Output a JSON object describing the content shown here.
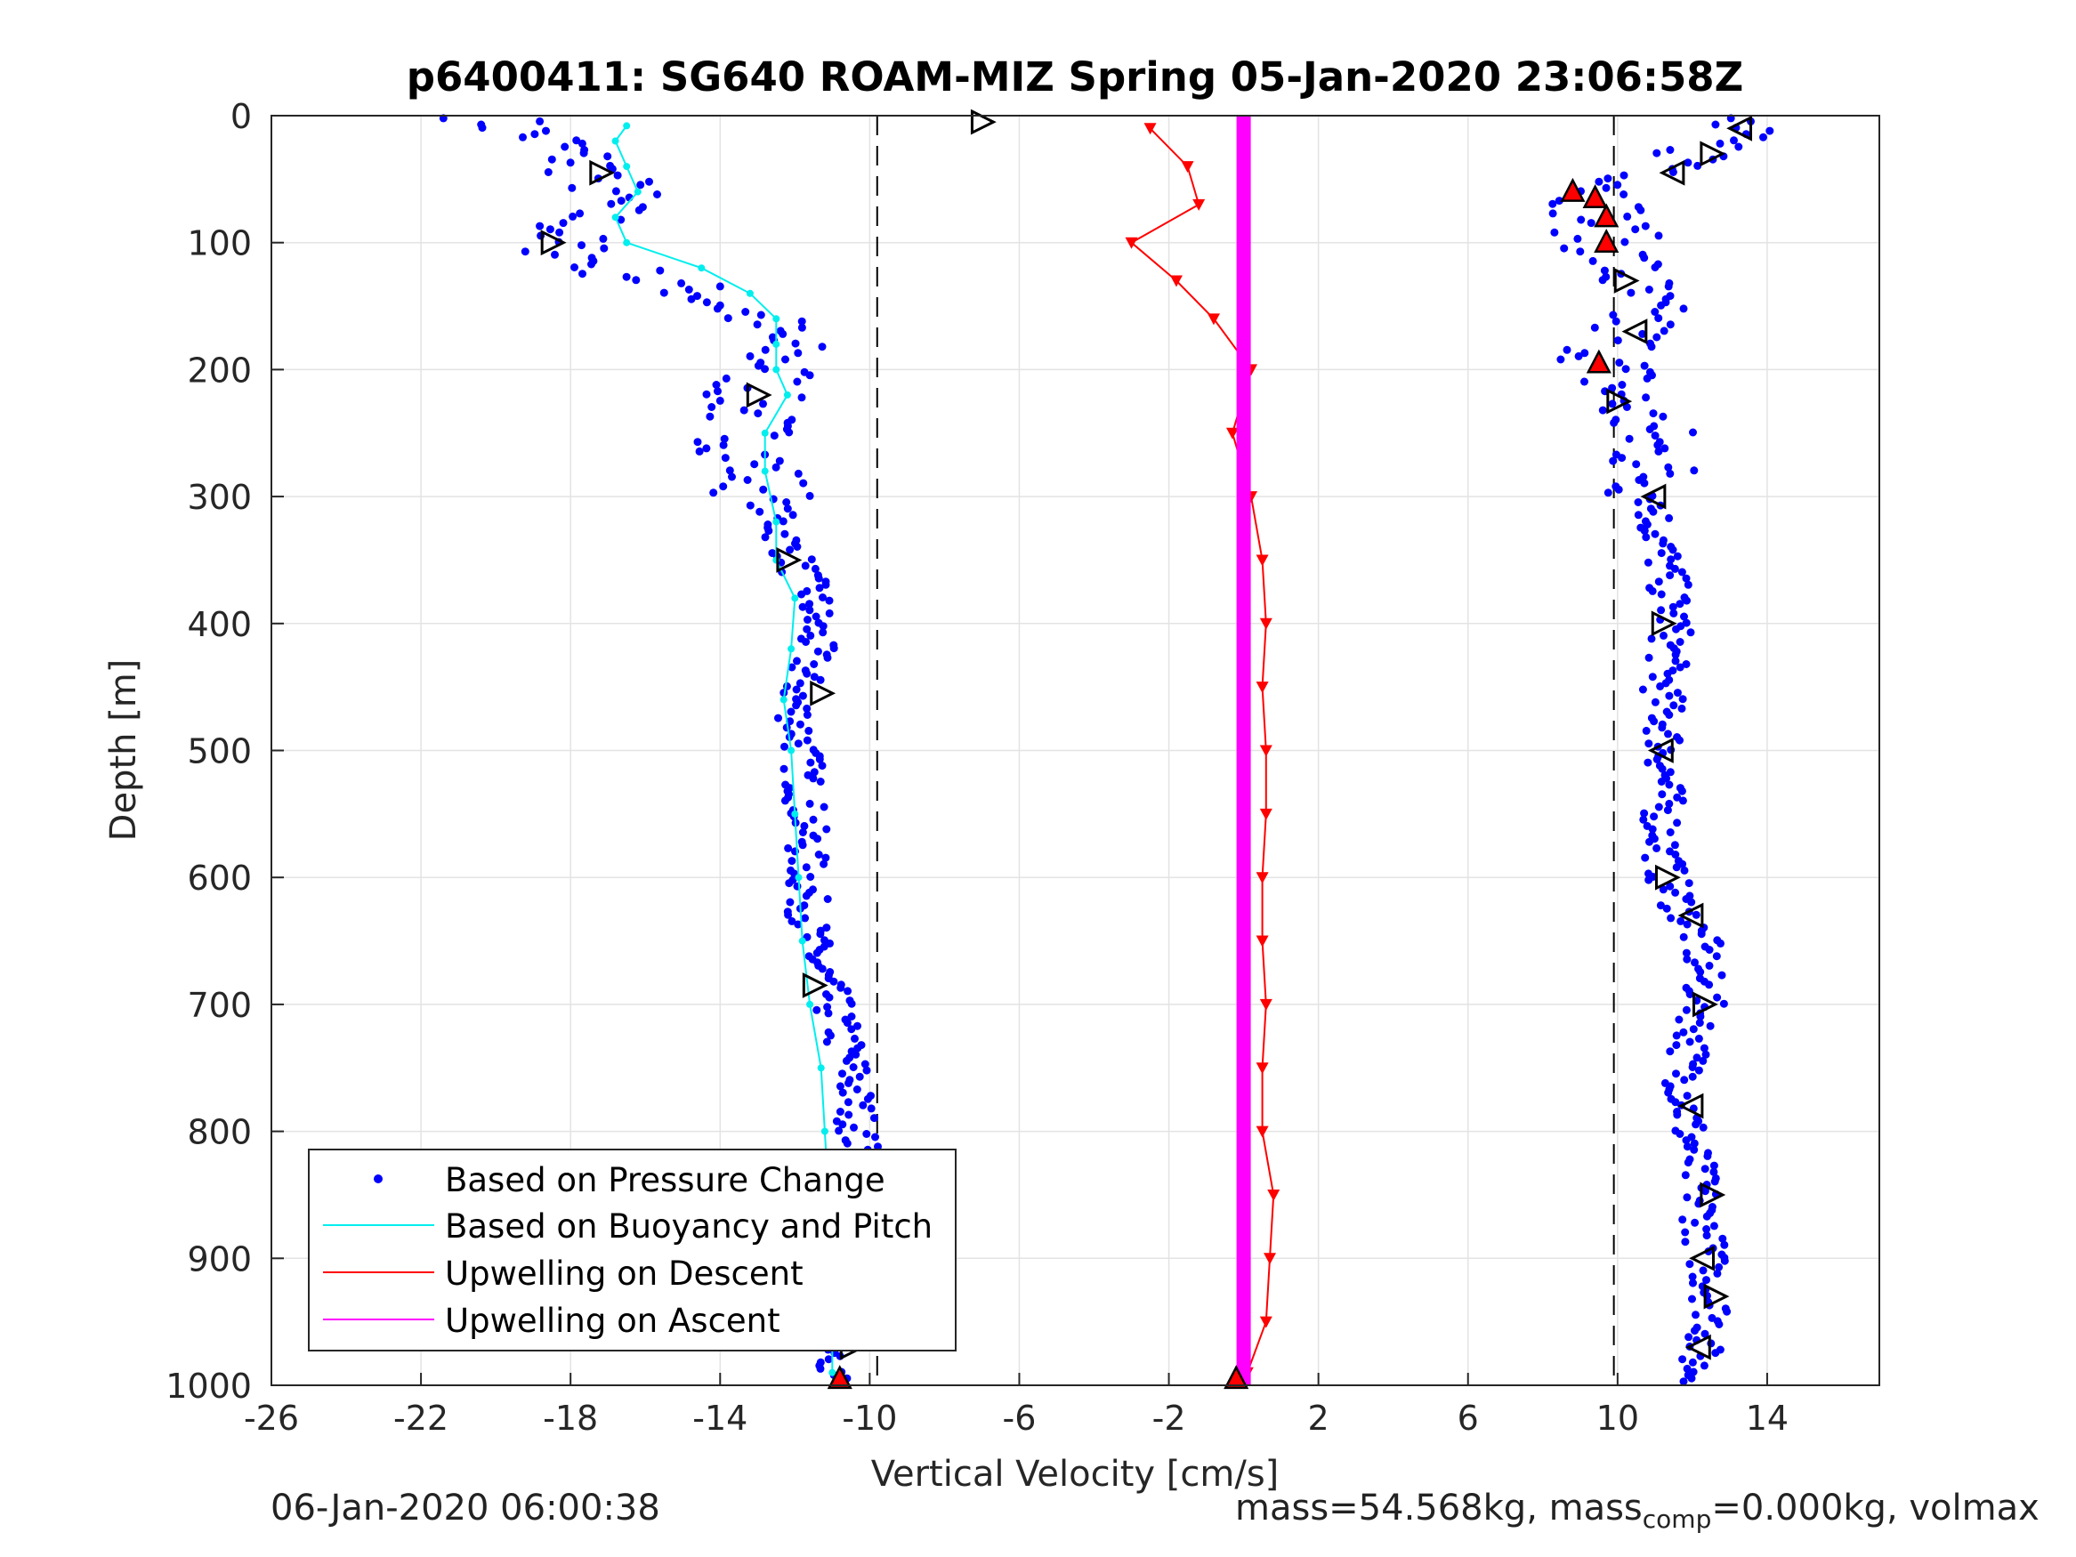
{
  "chart_data": {
    "type": "scatter",
    "title": "p6400411: SG640 ROAM-MIZ Spring 05-Jan-2020 23:06:58Z",
    "xlabel": "Vertical Velocity [cm/s]",
    "ylabel": "Depth [m]",
    "xlim": [
      -26,
      17
    ],
    "ylim": [
      1000,
      0
    ],
    "y_reversed": true,
    "grid": true,
    "x_ticks": [
      "-26",
      "-22",
      "-18",
      "-14",
      "-10",
      "-6",
      "-2",
      "2",
      "6",
      "10",
      "14"
    ],
    "x_tick_values": [
      -26,
      -22,
      -18,
      -14,
      -10,
      -6,
      -2,
      2,
      6,
      10,
      14
    ],
    "y_ticks": [
      "0",
      "100",
      "200",
      "300",
      "400",
      "500",
      "600",
      "700",
      "800",
      "900",
      "1000"
    ],
    "y_tick_values": [
      0,
      100,
      200,
      300,
      400,
      500,
      600,
      700,
      800,
      900,
      1000
    ],
    "reference_lines_x": [
      -9.8,
      9.9
    ],
    "legend_position": "bottom-left",
    "series": [
      {
        "name": "Based on Pressure Change",
        "color": "#0000ff",
        "style": "dots",
        "profiles": {
          "descent": {
            "depth": [
              5,
              20,
              40,
              60,
              80,
              100,
              120,
              140,
              160,
              180,
              200,
              220,
              250,
              280,
              320,
              350,
              380,
              420,
              460,
              500,
              550,
              600,
              650,
              700,
              750,
              800,
              850,
              900,
              950,
              1000
            ],
            "velocity": [
              -20,
              -18.5,
              -17.5,
              -16.8,
              -17.5,
              -18.5,
              -17,
              -14.5,
              -13,
              -12.5,
              -12.5,
              -13.2,
              -13.3,
              -13,
              -12.5,
              -12,
              -11.5,
              -11.5,
              -12,
              -11.8,
              -11.7,
              -11.7,
              -11.6,
              -11,
              -10.5,
              -10.3,
              -10.2,
              -10.2,
              -10.5,
              -11
            ]
          },
          "ascent": {
            "depth": [
              5,
              20,
              40,
              60,
              80,
              100,
              130,
              160,
              190,
              220,
              250,
              280,
              320,
              360,
              400,
              450,
              500,
              550,
              600,
              650,
              700,
              750,
              800,
              850,
              900,
              950,
              980
            ],
            "velocity": [
              13,
              12.5,
              12,
              9.8,
              9.5,
              9.8,
              10.3,
              10.5,
              9.8,
              10,
              10.8,
              11,
              11,
              11.3,
              11.5,
              11.2,
              11.3,
              11.2,
              11.3,
              12.2,
              12.3,
              11.8,
              11.9,
              12.2,
              12.4,
              12.6,
              12.1
            ]
          }
        }
      },
      {
        "name": "Based on Buoyancy and Pitch",
        "color": "#00eeee",
        "style": "line",
        "profiles": {
          "descent": {
            "depth": [
              8,
              20,
              40,
              60,
              80,
              100,
              120,
              140,
              160,
              180,
              200,
              220,
              250,
              280,
              320,
              350,
              380,
              420,
              460,
              500,
              550,
              600,
              650,
              700,
              750,
              800,
              850,
              900,
              950,
              990
            ],
            "velocity": [
              -16.5,
              -16.8,
              -16.5,
              -16.2,
              -16.8,
              -16.5,
              -14.5,
              -13.2,
              -12.5,
              -12.5,
              -12.5,
              -12.2,
              -12.8,
              -12.8,
              -12.5,
              -12.5,
              -12,
              -12.1,
              -12.3,
              -12.1,
              -12,
              -11.9,
              -11.8,
              -11.6,
              -11.3,
              -11.2,
              -11.1,
              -11.1,
              -11,
              -11
            ]
          }
        }
      },
      {
        "name": "Upwelling on Descent",
        "color": "#ff0000",
        "style": "line-triangles",
        "depth": [
          10,
          40,
          70,
          100,
          130,
          160,
          200,
          250,
          300,
          350,
          400,
          450,
          500,
          550,
          600,
          650,
          700,
          750,
          800,
          850,
          900,
          950,
          990
        ],
        "velocity": [
          -2.5,
          -1.5,
          -1.2,
          -3,
          -1.8,
          -0.8,
          0.2,
          -0.3,
          0.2,
          0.5,
          0.6,
          0.5,
          0.6,
          0.6,
          0.5,
          0.5,
          0.6,
          0.5,
          0.5,
          0.8,
          0.7,
          0.6,
          0.1
        ]
      },
      {
        "name": "Upwelling on Ascent",
        "color": "#ff00ff",
        "style": "line",
        "depth": [
          0,
          1000
        ],
        "velocity": [
          0,
          0
        ]
      }
    ],
    "apogee_markers": {
      "descent": {
        "depth": [
          5,
          45,
          100,
          220,
          350,
          455,
          685,
          970
        ],
        "velocity": [
          -7,
          -17.2,
          -18.5,
          -13,
          -12.2,
          -11.3,
          -11.5,
          -10.5
        ]
      },
      "ascent": {
        "depth": [
          10,
          30,
          45,
          130,
          170,
          225,
          300,
          400,
          500,
          600,
          630,
          700,
          780,
          850,
          900,
          930,
          970
        ],
        "velocity": [
          13.3,
          12.5,
          11.5,
          10.2,
          10.5,
          10,
          11,
          11.2,
          11.2,
          11.3,
          12,
          12.3,
          12,
          12.5,
          12.3,
          12.6,
          12.2
        ]
      },
      "red_triangles": {
        "depth": [
          60,
          65,
          80,
          100,
          195,
          995,
          995
        ],
        "velocity": [
          8.8,
          9.4,
          9.7,
          9.7,
          9.5,
          -10.8,
          -0.2
        ]
      }
    }
  },
  "footer": {
    "date_left": "06-Jan-2020 06:00:38",
    "mass_text_1": "mass=54.568kg, mass",
    "mass_sub": "comp",
    "mass_text_2": "=0.000kg, volmax"
  }
}
